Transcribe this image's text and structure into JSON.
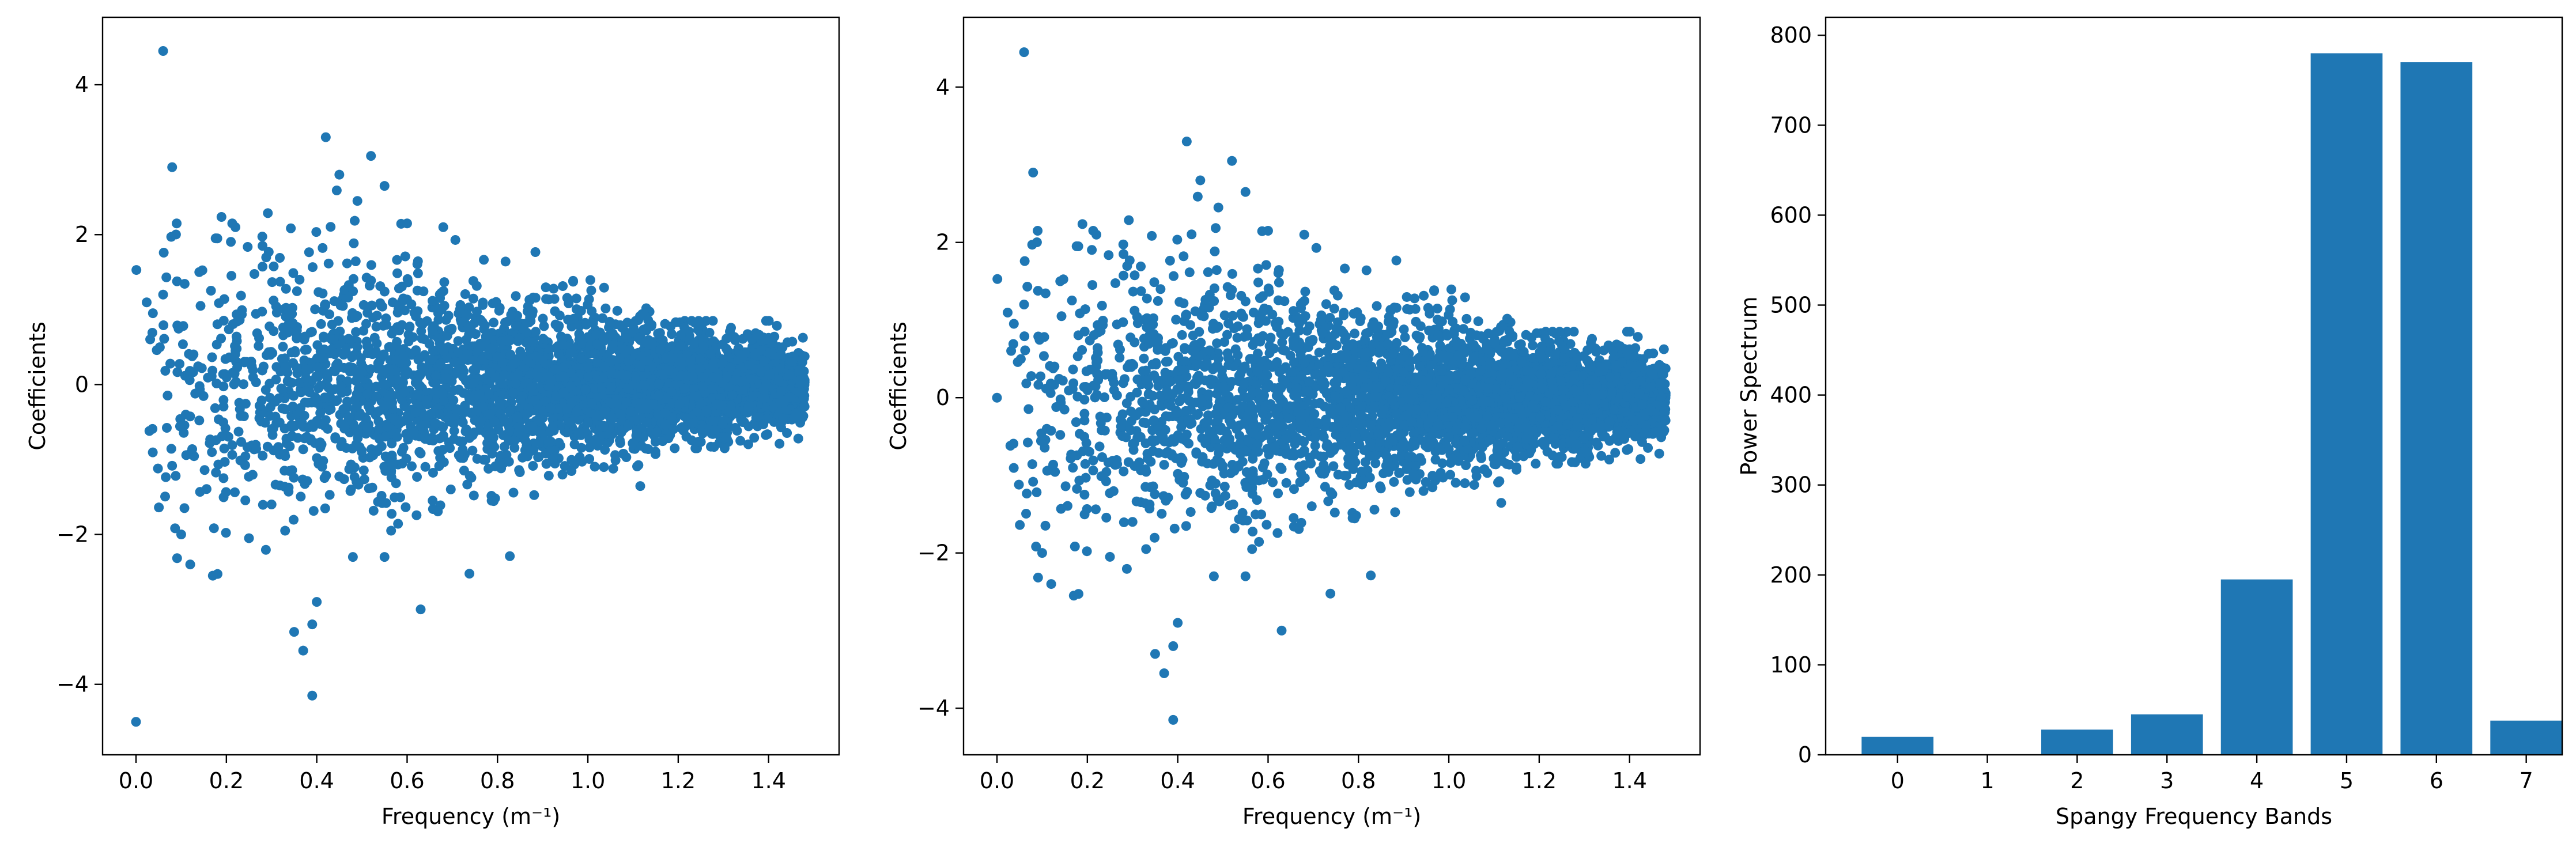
{
  "colors": {
    "marker": "#1f77b4",
    "axes": "#000000",
    "background": "#ffffff"
  },
  "chart_data": [
    {
      "type": "scatter",
      "title": "",
      "xlabel": "Frequency (m⁻¹)",
      "ylabel": "Coefficients",
      "xlim": [
        -0.074,
        1.556
      ],
      "ylim": [
        -4.94,
        4.9
      ],
      "xticks": [
        0.0,
        0.2,
        0.4,
        0.6,
        0.8,
        1.0,
        1.2,
        1.4
      ],
      "xtick_labels": [
        "0.0",
        "0.2",
        "0.4",
        "0.6",
        "0.8",
        "1.0",
        "1.2",
        "1.4"
      ],
      "yticks": [
        -4,
        -2,
        0,
        2,
        4
      ],
      "ytick_labels": [
        "−4",
        "−2",
        "0",
        "2",
        "4"
      ],
      "grid": false,
      "legend": "none",
      "x_range": [
        0.0,
        1.48
      ],
      "points": [
        [
          0.0,
          -4.5
        ],
        [
          0.06,
          4.45
        ],
        [
          0.08,
          2.9
        ],
        [
          0.09,
          2.15
        ],
        [
          0.42,
          3.3
        ],
        [
          0.52,
          3.05
        ],
        [
          0.39,
          -4.15
        ],
        [
          0.35,
          -3.3
        ],
        [
          0.37,
          -3.55
        ],
        [
          0.39,
          -3.2
        ],
        [
          0.4,
          -2.9
        ],
        [
          0.63,
          -3.0
        ],
        [
          0.12,
          -2.4
        ],
        [
          0.17,
          -2.55
        ],
        [
          0.1,
          -2.0
        ],
        [
          0.45,
          2.8
        ],
        [
          0.49,
          2.45
        ],
        [
          0.55,
          2.65
        ],
        [
          0.6,
          2.15
        ],
        [
          0.68,
          2.1
        ],
        [
          0.22,
          2.1
        ],
        [
          0.28,
          1.85
        ],
        [
          0.48,
          -2.3
        ],
        [
          0.25,
          -2.05
        ],
        [
          0.33,
          -1.95
        ],
        [
          0.55,
          -2.3
        ],
        [
          0.06,
          1.2
        ],
        [
          0.14,
          1.5
        ],
        [
          0.18,
          1.95
        ],
        [
          0.3,
          -1.6
        ]
      ]
    },
    {
      "type": "scatter",
      "title": "",
      "xlabel": "Frequency (m⁻¹)",
      "ylabel": "Coefficients",
      "xlim": [
        -0.074,
        1.556
      ],
      "ylim": [
        -4.6,
        4.9
      ],
      "xticks": [
        0.0,
        0.2,
        0.4,
        0.6,
        0.8,
        1.0,
        1.2,
        1.4
      ],
      "xtick_labels": [
        "0.0",
        "0.2",
        "0.4",
        "0.6",
        "0.8",
        "1.0",
        "1.2",
        "1.4"
      ],
      "yticks": [
        -4,
        -2,
        0,
        2,
        4
      ],
      "ytick_labels": [
        "−4",
        "−2",
        "0",
        "2",
        "4"
      ],
      "grid": false,
      "legend": "none",
      "x_range": [
        0.0,
        1.48
      ],
      "points": [
        [
          0.0,
          0.0
        ],
        [
          0.06,
          4.45
        ],
        [
          0.08,
          2.9
        ],
        [
          0.09,
          2.15
        ],
        [
          0.42,
          3.3
        ],
        [
          0.52,
          3.05
        ],
        [
          0.39,
          -4.15
        ],
        [
          0.35,
          -3.3
        ],
        [
          0.37,
          -3.55
        ],
        [
          0.39,
          -3.2
        ],
        [
          0.4,
          -2.9
        ],
        [
          0.63,
          -3.0
        ],
        [
          0.12,
          -2.4
        ],
        [
          0.17,
          -2.55
        ],
        [
          0.1,
          -2.0
        ],
        [
          0.45,
          2.8
        ],
        [
          0.49,
          2.45
        ],
        [
          0.55,
          2.65
        ],
        [
          0.6,
          2.15
        ],
        [
          0.68,
          2.1
        ],
        [
          0.22,
          2.1
        ],
        [
          0.28,
          1.85
        ],
        [
          0.48,
          -2.3
        ],
        [
          0.25,
          -2.05
        ],
        [
          0.33,
          -1.95
        ],
        [
          0.55,
          -2.3
        ],
        [
          0.06,
          1.2
        ],
        [
          0.14,
          1.5
        ],
        [
          0.18,
          1.95
        ],
        [
          0.3,
          -1.6
        ]
      ]
    },
    {
      "type": "bar",
      "title": "",
      "xlabel": "Spangy Frequency Bands",
      "ylabel": "Power Spectrum",
      "categories": [
        "0",
        "1",
        "2",
        "3",
        "4",
        "5",
        "6",
        "7"
      ],
      "values": [
        20,
        0,
        28,
        45,
        195,
        780,
        770,
        38
      ],
      "xlim": [
        -0.8,
        7.4
      ],
      "ylim": [
        0,
        820
      ],
      "yticks": [
        0,
        100,
        200,
        300,
        400,
        500,
        600,
        700,
        800
      ],
      "ytick_labels": [
        "0",
        "100",
        "200",
        "300",
        "400",
        "500",
        "600",
        "700",
        "800"
      ],
      "grid": false,
      "legend": "none"
    }
  ]
}
